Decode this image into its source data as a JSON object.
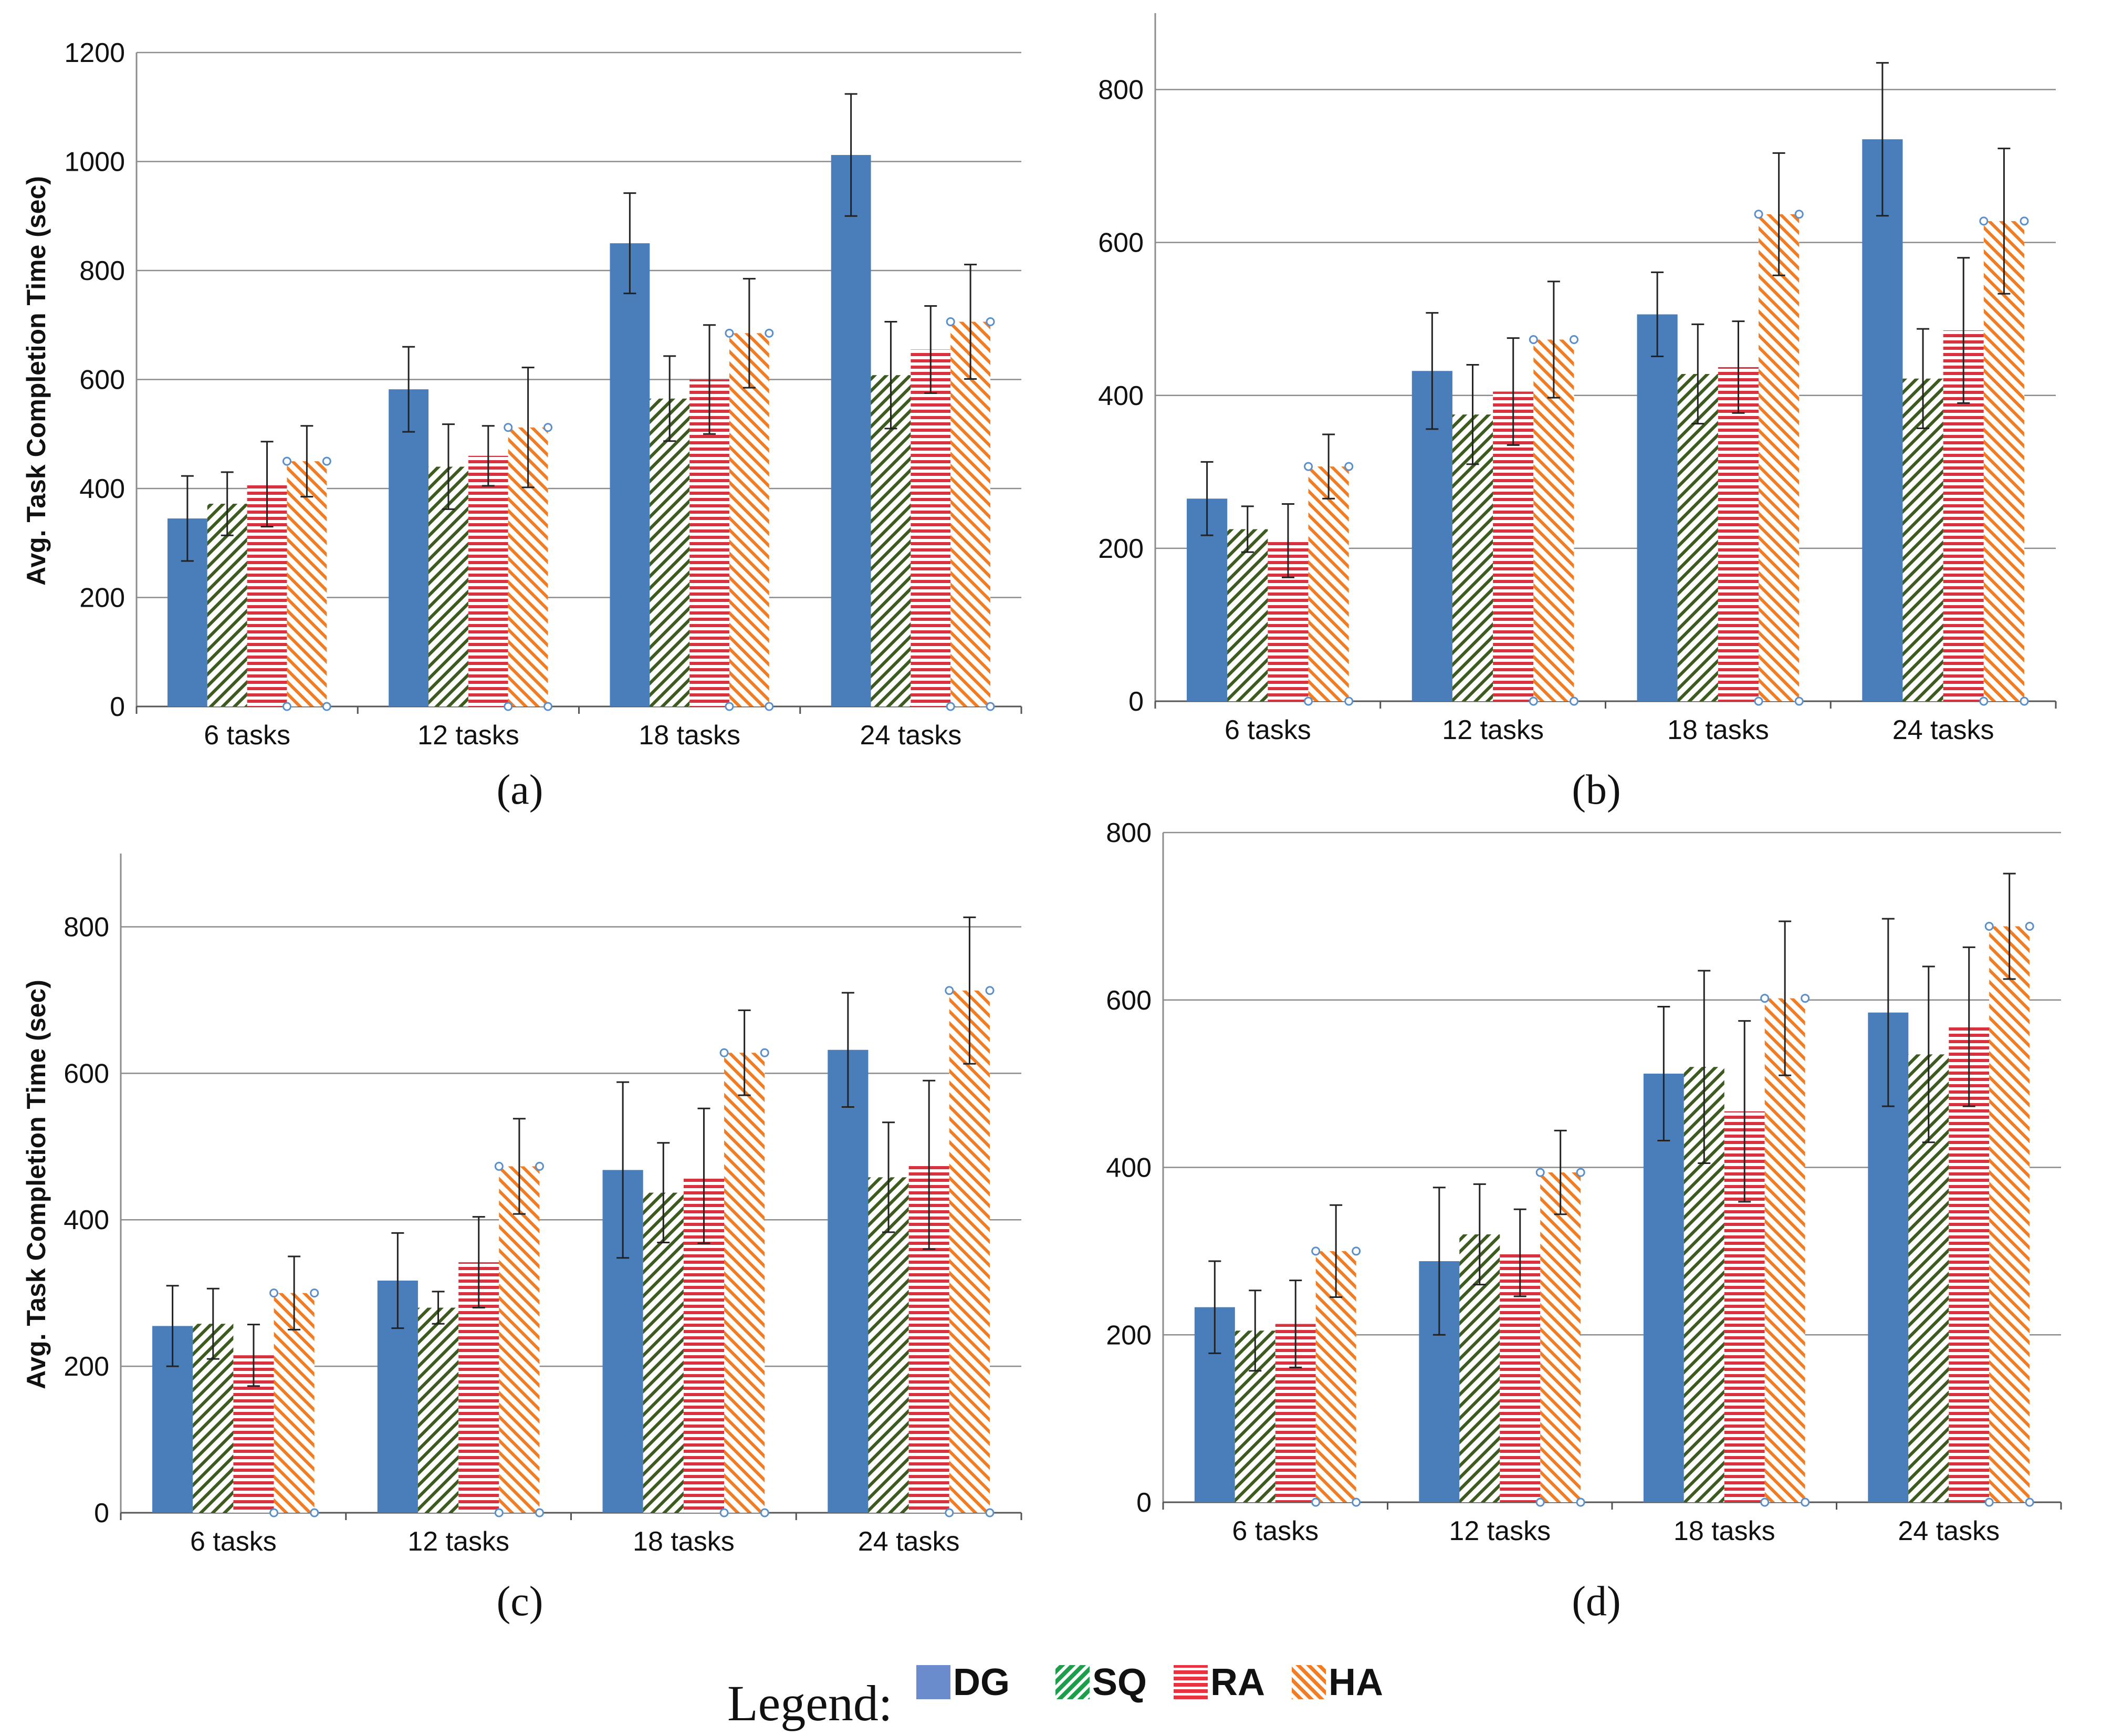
{
  "figure": {
    "series_colors": {
      "DG": "#4a7ebb",
      "SQ": "#3d5a1f",
      "RA": "#d9323f",
      "HA": "#f07d24"
    },
    "legend": {
      "title": "Legend:",
      "items": [
        {
          "name": "DG",
          "color": "#6b8ccc",
          "pattern": "solid"
        },
        {
          "name": "SQ",
          "color": "#1e9e4a",
          "pattern": "diagonal"
        },
        {
          "name": "RA",
          "color": "#e8323f",
          "pattern": "horizontal"
        },
        {
          "name": "HA",
          "color": "#f07d24",
          "pattern": "diagonal"
        }
      ]
    }
  },
  "chart_data": [
    {
      "type": "bar",
      "panel": "(a)",
      "ylabel": "Avg. Task Completion Time (sec)",
      "categories": [
        "6 tasks",
        "12 tasks",
        "18 tasks",
        "24 tasks"
      ],
      "ylim": [
        0,
        1200
      ],
      "yticks": [
        0,
        200,
        400,
        600,
        800,
        1000,
        1200
      ],
      "series": [
        {
          "name": "DG",
          "values": [
            345,
            582,
            850,
            1012
          ],
          "errors": [
            78,
            78,
            92,
            112
          ]
        },
        {
          "name": "SQ",
          "values": [
            372,
            440,
            565,
            608
          ],
          "errors": [
            58,
            78,
            78,
            98
          ]
        },
        {
          "name": "RA",
          "values": [
            408,
            460,
            600,
            655
          ],
          "errors": [
            78,
            55,
            100,
            80
          ]
        },
        {
          "name": "HA",
          "values": [
            450,
            512,
            685,
            706
          ],
          "errors": [
            65,
            110,
            100,
            105
          ]
        }
      ]
    },
    {
      "type": "bar",
      "panel": "(b)",
      "ylabel": "",
      "categories": [
        "6 tasks",
        "12 tasks",
        "18 tasks",
        "24 tasks"
      ],
      "ylim": [
        0,
        900
      ],
      "yticks": [
        0,
        200,
        400,
        600,
        800
      ],
      "series": [
        {
          "name": "DG",
          "values": [
            265,
            432,
            506,
            735
          ],
          "errors": [
            48,
            76,
            55,
            100
          ]
        },
        {
          "name": "SQ",
          "values": [
            225,
            375,
            428,
            422
          ],
          "errors": [
            30,
            65,
            65,
            65
          ]
        },
        {
          "name": "RA",
          "values": [
            210,
            405,
            437,
            485
          ],
          "errors": [
            48,
            70,
            60,
            95
          ]
        },
        {
          "name": "HA",
          "values": [
            307,
            473,
            637,
            628
          ],
          "errors": [
            42,
            76,
            80,
            95
          ]
        }
      ]
    },
    {
      "type": "bar",
      "panel": "(c)",
      "ylabel": "Avg. Task Completion Time (sec)",
      "categories": [
        "6 tasks",
        "12 tasks",
        "18 tasks",
        "24 tasks"
      ],
      "ylim": [
        0,
        900
      ],
      "yticks": [
        0,
        200,
        400,
        600,
        800
      ],
      "series": [
        {
          "name": "DG",
          "values": [
            255,
            317,
            468,
            632
          ],
          "errors": [
            55,
            65,
            120,
            78
          ]
        },
        {
          "name": "SQ",
          "values": [
            258,
            280,
            437,
            458
          ],
          "errors": [
            48,
            22,
            68,
            75
          ]
        },
        {
          "name": "RA",
          "values": [
            215,
            342,
            460,
            475
          ],
          "errors": [
            42,
            62,
            92,
            115
          ]
        },
        {
          "name": "HA",
          "values": [
            300,
            473,
            628,
            713
          ],
          "errors": [
            50,
            65,
            58,
            100
          ]
        }
      ]
    },
    {
      "type": "bar",
      "panel": "(d)",
      "ylabel": "",
      "categories": [
        "6 tasks",
        "12 tasks",
        "18 tasks",
        "24 tasks"
      ],
      "ylim": [
        0,
        800
      ],
      "yticks": [
        0,
        200,
        400,
        600,
        800
      ],
      "series": [
        {
          "name": "DG",
          "values": [
            233,
            288,
            512,
            585
          ],
          "errors": [
            55,
            88,
            80,
            112
          ]
        },
        {
          "name": "SQ",
          "values": [
            205,
            320,
            520,
            535
          ],
          "errors": [
            48,
            60,
            115,
            105
          ]
        },
        {
          "name": "RA",
          "values": [
            213,
            298,
            467,
            568
          ],
          "errors": [
            52,
            52,
            108,
            95
          ]
        },
        {
          "name": "HA",
          "values": [
            300,
            394,
            602,
            688
          ],
          "errors": [
            55,
            50,
            92,
            63
          ]
        }
      ]
    }
  ]
}
